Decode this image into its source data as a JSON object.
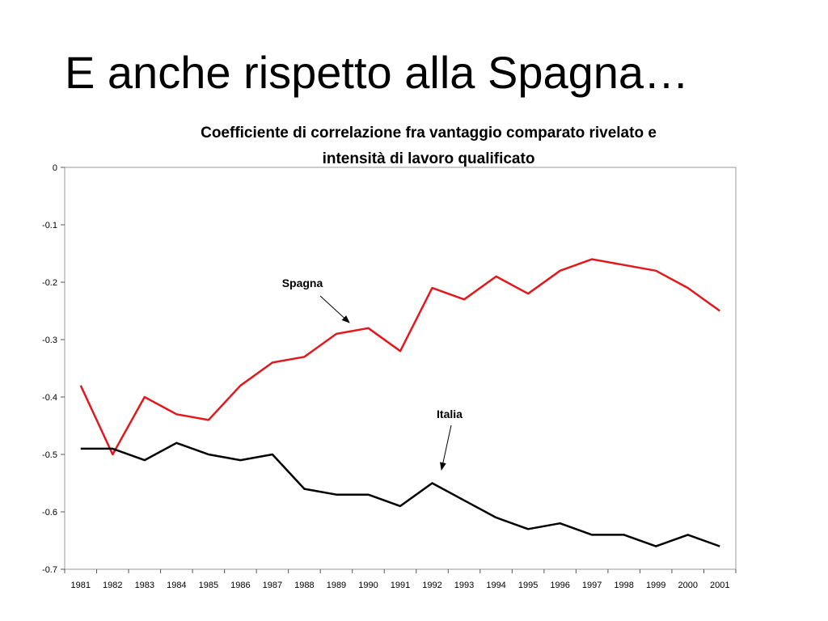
{
  "slide": {
    "title": "E anche rispetto alla Spagna…"
  },
  "chart_data": {
    "type": "line",
    "title_lines": [
      "Coefficiente di correlazione fra vantaggio comparato rivelato e",
      "intensità di lavoro qualificato"
    ],
    "categories": [
      "1981",
      "1982",
      "1983",
      "1984",
      "1985",
      "1986",
      "1987",
      "1988",
      "1989",
      "1990",
      "1991",
      "1992",
      "1993",
      "1994",
      "1995",
      "1996",
      "1997",
      "1998",
      "1999",
      "2000",
      "2001"
    ],
    "ylim": [
      -0.7,
      0
    ],
    "yticks": [
      0,
      -0.1,
      -0.2,
      -0.3,
      -0.4,
      -0.5,
      -0.6,
      -0.7
    ],
    "ytick_labels": [
      "0",
      "-0.1",
      "-0.2",
      "-0.3",
      "-0.4",
      "-0.5",
      "-0.6",
      "-0.7"
    ],
    "grid": false,
    "legend": "none",
    "series": [
      {
        "name": "Spagna",
        "color": "#e0191e",
        "values": [
          -0.38,
          -0.5,
          -0.4,
          -0.43,
          -0.44,
          -0.38,
          -0.34,
          -0.33,
          -0.29,
          -0.28,
          -0.32,
          -0.21,
          -0.23,
          -0.19,
          -0.22,
          -0.18,
          -0.16,
          -0.17,
          -0.18,
          -0.21,
          -0.25
        ]
      },
      {
        "name": "Italia",
        "color": "#000000",
        "values": [
          -0.49,
          -0.49,
          -0.51,
          -0.48,
          -0.5,
          -0.51,
          -0.5,
          -0.56,
          -0.57,
          -0.57,
          -0.59,
          -0.55,
          -0.58,
          -0.61,
          -0.63,
          -0.62,
          -0.64,
          -0.64,
          -0.66,
          -0.64,
          -0.66
        ]
      }
    ],
    "annotations": [
      {
        "text": "Spagna",
        "series": "Spagna"
      },
      {
        "text": "Italia",
        "series": "Italia"
      }
    ]
  }
}
